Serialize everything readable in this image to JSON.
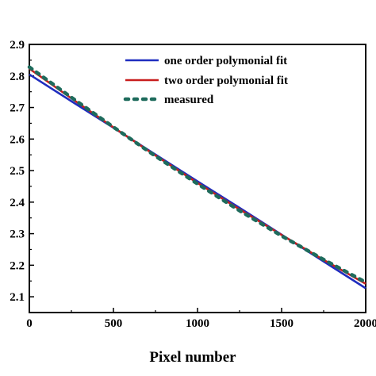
{
  "chart_data": {
    "type": "line",
    "title": "",
    "xlabel": "Pixel number",
    "ylabel": "",
    "xlim": [
      0,
      2000
    ],
    "ylim": [
      2.05,
      2.9
    ],
    "x_ticks": [
      0,
      500,
      1000,
      1500,
      2000
    ],
    "x_tick_labels": [
      "0",
      "500",
      "1000",
      "1500",
      "2000"
    ],
    "y_ticks": [
      2.1,
      2.2,
      2.3,
      2.4,
      2.5,
      2.6,
      2.7,
      2.8,
      2.9
    ],
    "y_tick_labels": [
      "2.1",
      "2.2",
      "2.3",
      "2.4",
      "2.5",
      "2.6",
      "2.7",
      "2.8",
      "2.9"
    ],
    "grid": false,
    "legend_position": "top-right",
    "series": [
      {
        "name": "one order polymonial fit",
        "style": "solid",
        "color": "#1f2dbf",
        "x": [
          0,
          250,
          500,
          750,
          1000,
          1250,
          1500,
          1750,
          2000
        ],
        "y": [
          2.805,
          2.72,
          2.636,
          2.551,
          2.466,
          2.382,
          2.297,
          2.212,
          2.127
        ]
      },
      {
        "name": "two order polymonial fit",
        "style": "solid",
        "color": "#c81e1e",
        "x": [
          0,
          250,
          500,
          750,
          1000,
          1250,
          1500,
          1750,
          2000
        ],
        "y": [
          2.823,
          2.729,
          2.637,
          2.548,
          2.461,
          2.377,
          2.296,
          2.217,
          2.141
        ]
      },
      {
        "name": "measured",
        "style": "dotted",
        "color": "#1e6b5c",
        "x": [
          0,
          250,
          500,
          750,
          1000,
          1250,
          1500,
          1750,
          2000
        ],
        "y": [
          2.828,
          2.732,
          2.638,
          2.546,
          2.458,
          2.373,
          2.293,
          2.218,
          2.146
        ]
      }
    ]
  }
}
